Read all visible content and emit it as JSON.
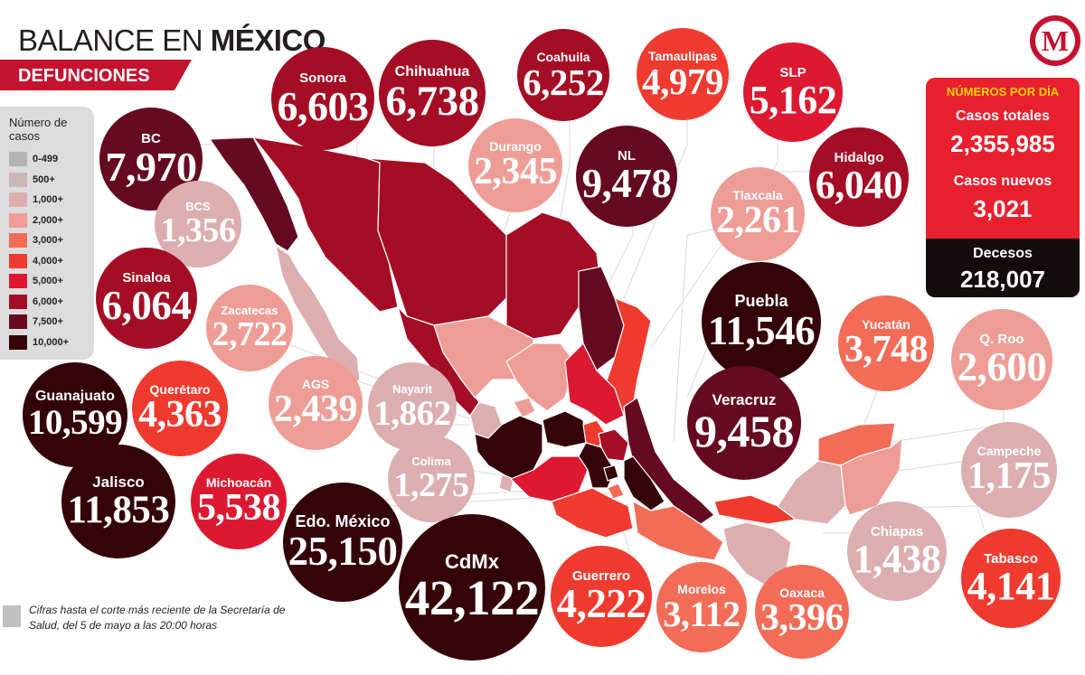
{
  "header": {
    "title_light": "BALANCE EN ",
    "title_bold": "MÉXICO",
    "subtitle": "DEFUNCIONES"
  },
  "legend": {
    "title": "Número de casos",
    "items": [
      {
        "label": "0-499",
        "color": "#b3b3b3"
      },
      {
        "label": "500+",
        "color": "#c9b8b8"
      },
      {
        "label": "1,000+",
        "color": "#dcaeb0"
      },
      {
        "label": "2,000+",
        "color": "#ee9d96"
      },
      {
        "label": "3,000+",
        "color": "#f26c58"
      },
      {
        "label": "4,000+",
        "color": "#ef3b2f"
      },
      {
        "label": "5,000+",
        "color": "#dc1931"
      },
      {
        "label": "6,000+",
        "color": "#a40d24"
      },
      {
        "label": "7,500+",
        "color": "#650a21"
      },
      {
        "label": "10,000+",
        "color": "#340408"
      }
    ]
  },
  "logo": {
    "letter": "M"
  },
  "stats": {
    "header": "NÚMEROS POR DÍA",
    "total_label": "Casos totales",
    "total_value": "2,355,985",
    "new_label": "Casos nuevos",
    "new_value": "3,021",
    "deaths_label": "Decesos",
    "deaths_value": "218,007"
  },
  "states": [
    {
      "name": "BC",
      "value": "7,970",
      "color": "#650a21"
    },
    {
      "name": "BCS",
      "value": "1,356",
      "color": "#dcaeb0"
    },
    {
      "name": "Sinaloa",
      "value": "6,064",
      "color": "#a40d24"
    },
    {
      "name": "Zacatecas",
      "value": "2,722",
      "color": "#ee9d96"
    },
    {
      "name": "Sonora",
      "value": "6,603",
      "color": "#a40d24"
    },
    {
      "name": "Chihuahua",
      "value": "6,738",
      "color": "#a40d24"
    },
    {
      "name": "Coahuila",
      "value": "6,252",
      "color": "#a40d24"
    },
    {
      "name": "Tamaulipas",
      "value": "4,979",
      "color": "#ef3b2f"
    },
    {
      "name": "SLP",
      "value": "5,162",
      "color": "#dc1931"
    },
    {
      "name": "Durango",
      "value": "2,345",
      "color": "#ee9d96"
    },
    {
      "name": "NL",
      "value": "9,478",
      "color": "#650a21"
    },
    {
      "name": "Hidalgo",
      "value": "6,040",
      "color": "#a40d24"
    },
    {
      "name": "Tlaxcala",
      "value": "2,261",
      "color": "#ee9d96"
    },
    {
      "name": "Puebla",
      "value": "11,546",
      "color": "#340408"
    },
    {
      "name": "Yucatán",
      "value": "3,748",
      "color": "#f26c58"
    },
    {
      "name": "Q. Roo",
      "value": "2,600",
      "color": "#ee9d96"
    },
    {
      "name": "Veracruz",
      "value": "9,458",
      "color": "#650a21"
    },
    {
      "name": "Guanajuato",
      "value": "10,599",
      "color": "#340408"
    },
    {
      "name": "Querétaro",
      "value": "4,363",
      "color": "#ef3b2f"
    },
    {
      "name": "AGS",
      "value": "2,439",
      "color": "#ee9d96"
    },
    {
      "name": "Nayarit",
      "value": "1,862",
      "color": "#dcaeb0"
    },
    {
      "name": "Campeche",
      "value": "1,175",
      "color": "#dcaeb0"
    },
    {
      "name": "Colima",
      "value": "1,275",
      "color": "#dcaeb0"
    },
    {
      "name": "Jalisco",
      "value": "11,853",
      "color": "#340408"
    },
    {
      "name": "Michoacán",
      "value": "5,538",
      "color": "#dc1931"
    },
    {
      "name": "Edo. México",
      "value": "25,150",
      "color": "#340408"
    },
    {
      "name": "CdMx",
      "value": "42,122",
      "color": "#340408"
    },
    {
      "name": "Guerrero",
      "value": "4,222",
      "color": "#ef3b2f"
    },
    {
      "name": "Morelos",
      "value": "3,112",
      "color": "#f26c58"
    },
    {
      "name": "Oaxaca",
      "value": "3,396",
      "color": "#f26c58"
    },
    {
      "name": "Chiapas",
      "value": "1,438",
      "color": "#dcaeb0"
    },
    {
      "name": "Tabasco",
      "value": "4,141",
      "color": "#ef3b2f"
    }
  ],
  "footnote": "Cifras hasta el corte más reciente de la Secretaría de Salud, del 5 de mayo a las 20:00 horas"
}
